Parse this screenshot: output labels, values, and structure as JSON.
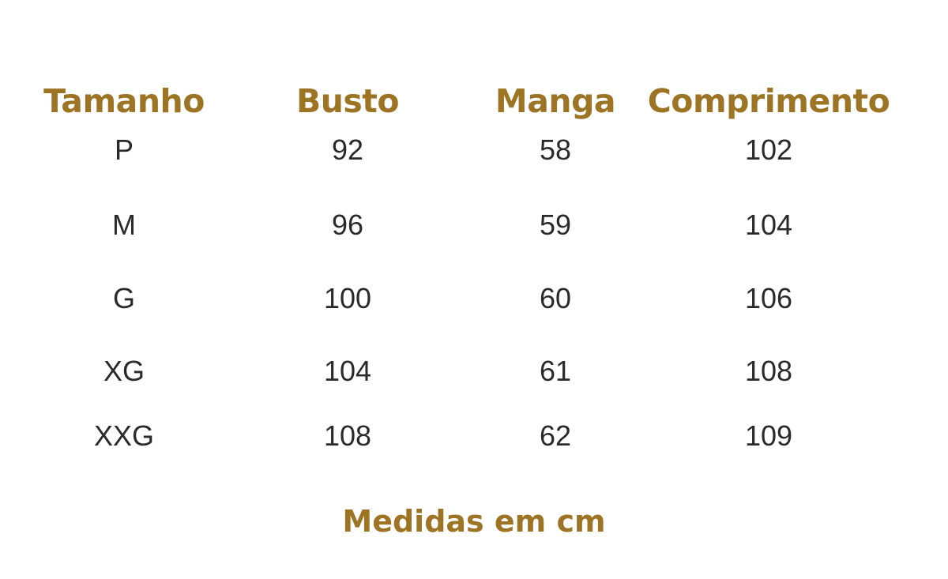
{
  "table": {
    "headers": [
      "Tamanho",
      "Busto",
      "Manga",
      "Comprimento"
    ],
    "rows": [
      [
        "P",
        "92",
        "58",
        "102"
      ],
      [
        "M",
        "96",
        "59",
        "104"
      ],
      [
        "G",
        "100",
        "60",
        "106"
      ],
      [
        "XG",
        "104",
        "61",
        "108"
      ],
      [
        "XXG",
        "108",
        "62",
        "109"
      ]
    ]
  },
  "footer": "Medidas em cm",
  "colors": {
    "accent": "#9c7424",
    "text": "#2a2a2a"
  }
}
